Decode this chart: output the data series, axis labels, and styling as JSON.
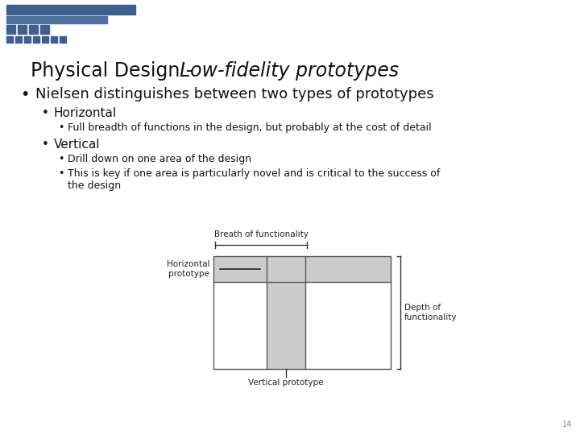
{
  "title_normal": "Physical Design - ",
  "title_italic": "Low-fidelity prototypes",
  "bg_color": "#ffffff",
  "header_blue_dark": "#3f5f8f",
  "header_blue_medium": "#5070a0",
  "bullet1": "Nielsen distinguishes between two types of prototypes",
  "bullet2": "Horizontal",
  "bullet3": "Full breadth of functions in the design, but probably at the cost of detail",
  "bullet4": "Vertical",
  "bullet5": "Drill down on one area of the design",
  "bullet6": "This is key if one area is particularly novel and is critical to the success of\nthe design",
  "diagram_label_breadth": "Breath of functionality",
  "diagram_label_horizontal": "Horizontal\nprototype",
  "diagram_label_vertical": "Vertical prototype",
  "diagram_label_depth": "Depth of\nfunctionality",
  "page_number": "14",
  "gray_fill": "#cccccc",
  "box_line_color": "#555555",
  "text_color": "#111111"
}
